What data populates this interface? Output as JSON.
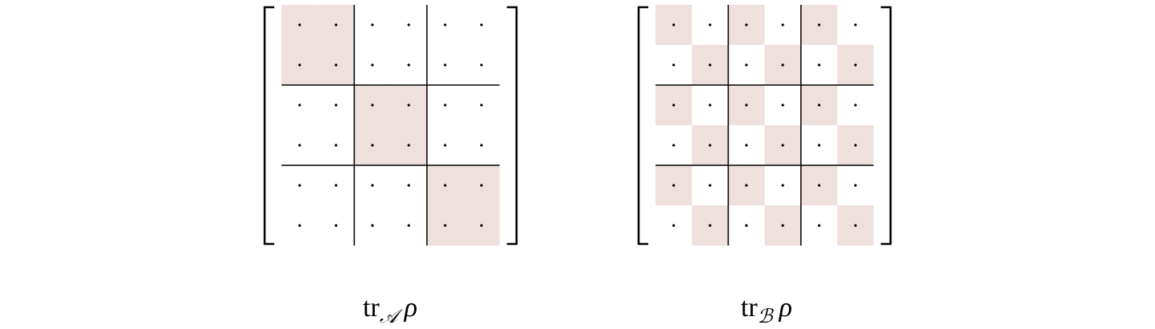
{
  "diagrams": [
    {
      "label": {
        "op": "tr",
        "sub": "𝒜",
        "arg": "ρ"
      }
    },
    {
      "label": {
        "op": "tr",
        "sub": "ℬ",
        "arg": "ρ"
      }
    }
  ]
}
